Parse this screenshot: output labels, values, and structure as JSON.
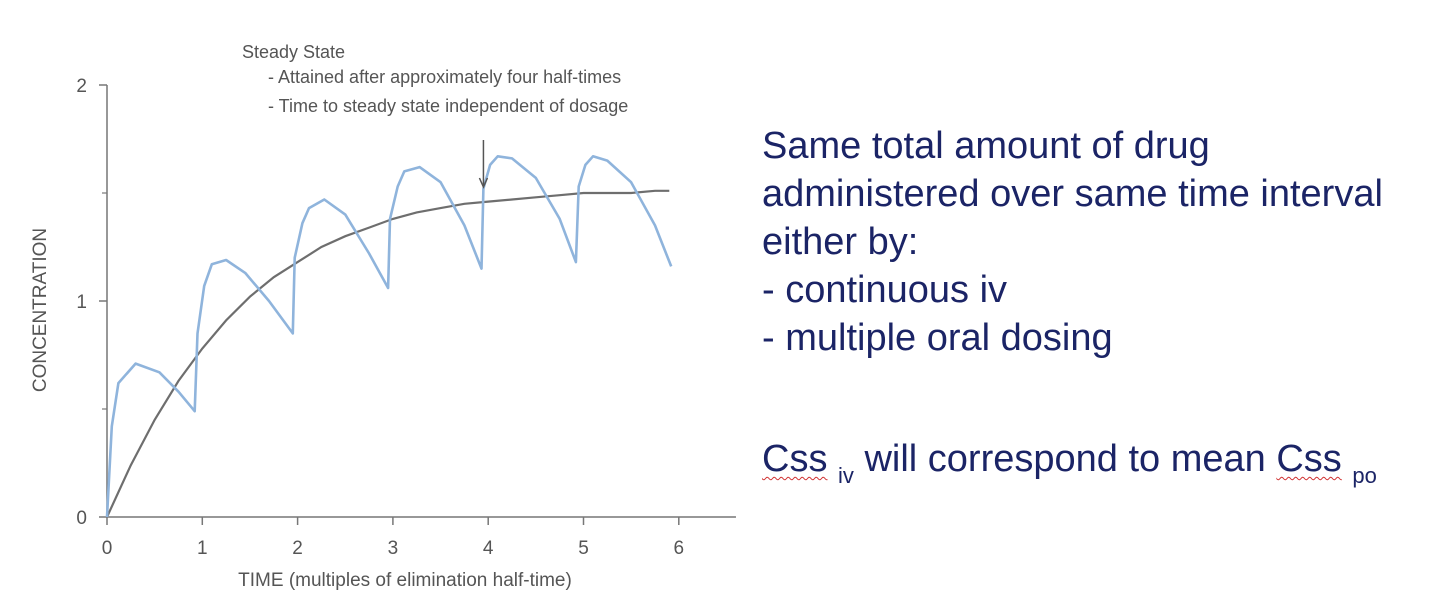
{
  "chart_data": {
    "type": "line",
    "ylabel": "CONCENTRATION",
    "xlabel": "TIME (multiples of elimination half-time)",
    "x_ticks": [
      "0",
      "1",
      "2",
      "3",
      "4",
      "5",
      "6"
    ],
    "y_ticks": [
      "0",
      "1",
      "2"
    ],
    "xlim": [
      0,
      6.6
    ],
    "ylim": [
      0,
      2
    ],
    "grid": false,
    "colors": {
      "continuous_curve": "#6e6e6e",
      "oral_dosing_curve": "#8fb4dc",
      "axis": "#777777"
    },
    "annotation": {
      "heading": "Steady State",
      "bullets": [
        "- Attained after approximately four half-times",
        "- Time to steady state independent of dosage"
      ],
      "arrow_at_x": 3.95
    },
    "series": [
      {
        "curve": "continuous",
        "x": [
          0,
          0.25,
          0.5,
          0.75,
          1.0,
          1.25,
          1.5,
          1.75,
          2.0,
          2.25,
          2.5,
          2.75,
          3.0,
          3.25,
          3.5,
          3.75,
          4.0,
          4.25,
          4.5,
          4.75,
          5.0,
          5.25,
          5.5,
          5.75,
          5.9
        ],
        "y": [
          0,
          0.24,
          0.45,
          0.63,
          0.78,
          0.91,
          1.02,
          1.11,
          1.18,
          1.25,
          1.3,
          1.34,
          1.38,
          1.41,
          1.43,
          1.45,
          1.46,
          1.47,
          1.48,
          1.49,
          1.5,
          1.5,
          1.5,
          1.51,
          1.51
        ]
      },
      {
        "curve": "oral",
        "x": [
          0,
          0.05,
          0.12,
          0.3,
          0.55,
          0.75,
          0.92,
          0.95,
          1.02,
          1.1,
          1.25,
          1.45,
          1.7,
          1.95,
          1.97,
          2.05,
          2.12,
          2.28,
          2.5,
          2.75,
          2.95,
          2.97,
          3.05,
          3.12,
          3.28,
          3.5,
          3.75,
          3.93,
          3.95,
          4.02,
          4.1,
          4.25,
          4.5,
          4.75,
          4.92,
          4.95,
          5.02,
          5.1,
          5.25,
          5.5,
          5.75,
          5.92
        ],
        "y": [
          0,
          0.42,
          0.62,
          0.71,
          0.67,
          0.58,
          0.49,
          0.85,
          1.07,
          1.17,
          1.19,
          1.13,
          1.0,
          0.85,
          1.2,
          1.36,
          1.43,
          1.47,
          1.4,
          1.22,
          1.06,
          1.38,
          1.53,
          1.6,
          1.62,
          1.55,
          1.35,
          1.15,
          1.52,
          1.63,
          1.67,
          1.66,
          1.57,
          1.38,
          1.18,
          1.53,
          1.63,
          1.67,
          1.65,
          1.55,
          1.35,
          1.16
        ]
      }
    ]
  },
  "side_text": {
    "lines": [
      "Same total amount of drug",
      "administered over same time interval",
      "either by:",
      "- continuous iv",
      "- multiple oral dosing"
    ],
    "css_line": {
      "css_1": "Css",
      "sub_iv": "iv",
      "middle": " will correspond to mean ",
      "css_2": "Css",
      "sub_po": "po"
    }
  }
}
